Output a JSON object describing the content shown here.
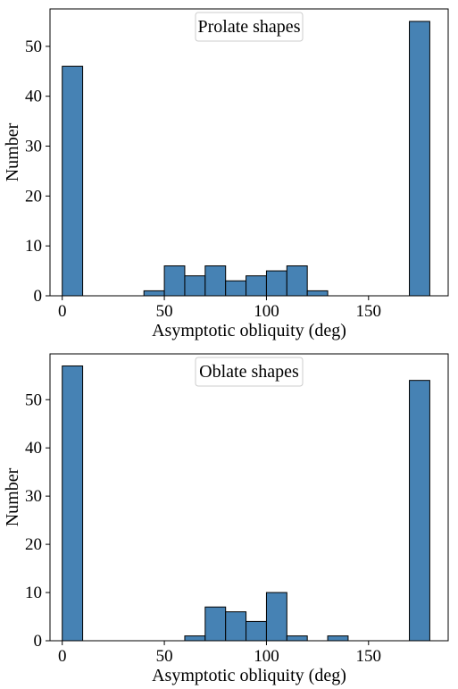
{
  "chart_data": [
    {
      "type": "bar",
      "subtype": "histogram",
      "annotation": "Prolate shapes",
      "xlabel": "Asymptotic obliquity (deg)",
      "ylabel": "Number",
      "xlim": [
        -6,
        189
      ],
      "ylim": [
        0,
        57.5
      ],
      "xticks": [
        0,
        50,
        100,
        150
      ],
      "yticks": [
        0,
        10,
        20,
        30,
        40,
        50
      ],
      "bin_width": 10,
      "bins": [
        {
          "x0": 0,
          "x1": 10,
          "count": 46
        },
        {
          "x0": 40,
          "x1": 50,
          "count": 1
        },
        {
          "x0": 50,
          "x1": 60,
          "count": 6
        },
        {
          "x0": 60,
          "x1": 70,
          "count": 4
        },
        {
          "x0": 70,
          "x1": 80,
          "count": 6
        },
        {
          "x0": 80,
          "x1": 90,
          "count": 3
        },
        {
          "x0": 90,
          "x1": 100,
          "count": 4
        },
        {
          "x0": 100,
          "x1": 110,
          "count": 5
        },
        {
          "x0": 110,
          "x1": 120,
          "count": 6
        },
        {
          "x0": 120,
          "x1": 130,
          "count": 1
        },
        {
          "x0": 170,
          "x1": 180,
          "count": 55
        }
      ],
      "bar_color": "#4682b4",
      "edge_color": "#000000",
      "annotation_placement": "top-center"
    },
    {
      "type": "bar",
      "subtype": "histogram",
      "annotation": "Oblate shapes",
      "xlabel": "Asymptotic obliquity (deg)",
      "ylabel": "Number",
      "xlim": [
        -6,
        189
      ],
      "ylim": [
        0,
        59.5
      ],
      "xticks": [
        0,
        50,
        100,
        150
      ],
      "yticks": [
        0,
        10,
        20,
        30,
        40,
        50
      ],
      "bin_width": 10,
      "bins": [
        {
          "x0": 0,
          "x1": 10,
          "count": 57
        },
        {
          "x0": 60,
          "x1": 70,
          "count": 1
        },
        {
          "x0": 70,
          "x1": 80,
          "count": 7
        },
        {
          "x0": 80,
          "x1": 90,
          "count": 6
        },
        {
          "x0": 90,
          "x1": 100,
          "count": 4
        },
        {
          "x0": 100,
          "x1": 110,
          "count": 10
        },
        {
          "x0": 110,
          "x1": 120,
          "count": 1
        },
        {
          "x0": 130,
          "x1": 140,
          "count": 1
        },
        {
          "x0": 170,
          "x1": 180,
          "count": 54
        }
      ],
      "bar_color": "#4682b4",
      "edge_color": "#000000",
      "annotation_placement": "top-center"
    }
  ]
}
